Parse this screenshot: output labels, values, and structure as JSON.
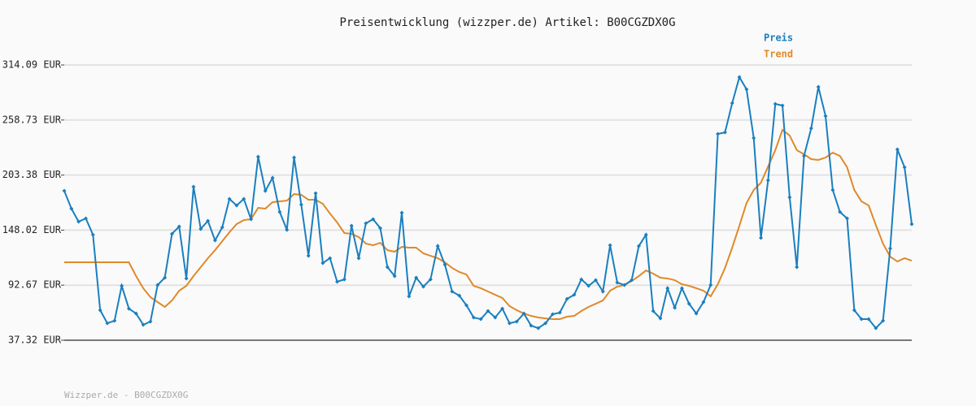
{
  "chart_data": {
    "type": "line",
    "title": "Preisentwicklung (wizzper.de) Artikel: B00CGZDX0G",
    "footer": "Wizzper.de - B00CGZDX0G",
    "ylim": [
      37.32,
      314.09
    ],
    "yticks": [
      {
        "value": 37.32,
        "label": "37.32 EUR"
      },
      {
        "value": 92.67,
        "label": "92.67 EUR"
      },
      {
        "value": 148.02,
        "label": "148.02 EUR"
      },
      {
        "value": 203.38,
        "label": "203.38 EUR"
      },
      {
        "value": 258.73,
        "label": "258.73 EUR"
      },
      {
        "value": 314.09,
        "label": "314.09 EUR"
      }
    ],
    "grid": true,
    "series": [
      {
        "name": "Preis",
        "color": "#1a7fbf",
        "markers": true,
        "values": [
          187.5,
          169.6,
          156.5,
          159.8,
          143.4,
          67.5,
          54.4,
          56.9,
          92.0,
          69.1,
          64.2,
          52.8,
          56.1,
          92.8,
          100.2,
          144.3,
          151.6,
          99.4,
          191.6,
          149.2,
          157.3,
          137.7,
          150.8,
          179.4,
          172.8,
          179.4,
          159.0,
          221.8,
          187.5,
          200.6,
          166.3,
          148.3,
          221.0,
          173.7,
          122.2,
          185.1,
          114.9,
          119.8,
          96.1,
          98.5,
          152.4,
          119.8,
          154.9,
          159.0,
          150.0,
          110.8,
          101.8,
          165.5,
          81.4,
          100.2,
          91.2,
          98.5,
          132.0,
          113.2,
          86.3,
          82.2,
          72.4,
          60.2,
          58.5,
          66.7,
          60.2,
          69.1,
          54.4,
          56.1,
          64.2,
          52.0,
          49.5,
          54.4,
          63.4,
          65.1,
          78.9,
          83.0,
          98.5,
          92.0,
          97.7,
          86.3,
          132.8,
          95.3,
          92.8,
          97.7,
          132.0,
          143.4,
          66.7,
          59.3,
          89.6,
          70.0,
          89.6,
          74.0,
          64.2,
          75.7,
          92.8,
          244.7,
          246.3,
          275.7,
          301.8,
          289.6,
          240.6,
          140.2,
          198.2,
          274.9,
          273.3,
          181.0,
          110.8,
          222.6,
          250.4,
          292.0,
          262.7,
          188.4,
          166.3,
          159.8,
          67.5,
          58.5,
          58.5,
          49.5,
          56.9,
          129.6,
          229.2,
          211.2,
          154.1
        ]
      },
      {
        "name": "Trend",
        "color": "#e0892a",
        "markers": false,
        "values": [
          115.7,
          115.7,
          115.7,
          115.7,
          115.7,
          115.7,
          115.7,
          115.7,
          115.7,
          115.7,
          101.8,
          89.6,
          80.6,
          75.7,
          70.8,
          77.3,
          87.1,
          92.0,
          101.8,
          110.8,
          119.8,
          127.9,
          136.9,
          145.9,
          154.1,
          158.1,
          159.0,
          170.4,
          169.6,
          176.1,
          176.9,
          177.7,
          184.3,
          183.5,
          178.6,
          178.6,
          174.5,
          164.7,
          155.7,
          145.1,
          144.3,
          141.0,
          134.5,
          132.8,
          135.3,
          127.9,
          126.3,
          131.2,
          130.4,
          130.4,
          124.7,
          122.2,
          119.8,
          115.7,
          110.0,
          105.9,
          103.4,
          92.0,
          89.6,
          86.3,
          83.0,
          79.8,
          71.6,
          67.5,
          64.2,
          61.8,
          60.2,
          59.3,
          58.5,
          58.5,
          61.0,
          61.8,
          66.7,
          70.8,
          74.0,
          77.3,
          87.1,
          91.2,
          92.8,
          96.9,
          101.8,
          107.5,
          104.3,
          100.2,
          99.4,
          97.7,
          93.6,
          92.0,
          89.6,
          87.1,
          81.4,
          93.6,
          110.0,
          130.4,
          152.4,
          175.3,
          188.4,
          195.7,
          212.0,
          228.4,
          248.8,
          243.1,
          228.4,
          224.3,
          219.4,
          218.6,
          221.0,
          225.9,
          222.6,
          211.2,
          188.4,
          176.9,
          172.8,
          153.2,
          134.5,
          121.4,
          116.5,
          119.8,
          117.3
        ]
      }
    ]
  }
}
